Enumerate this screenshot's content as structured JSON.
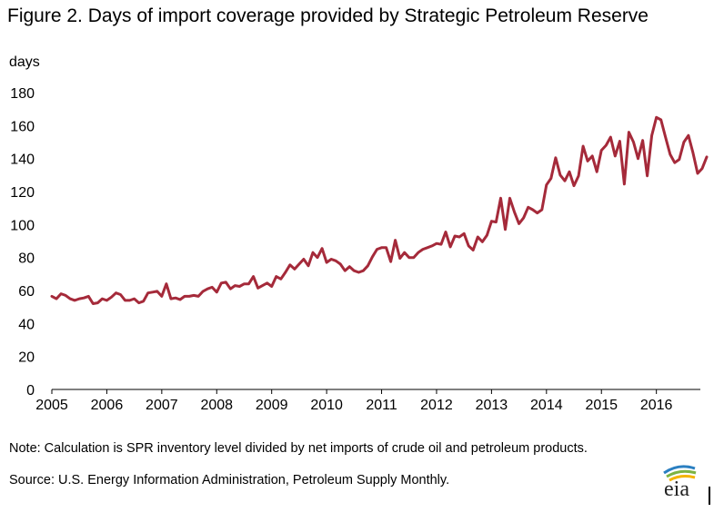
{
  "header": {
    "title": "Figure 2. Days of import coverage provided by Strategic Petroleum Reserve"
  },
  "footer": {
    "note": "Note: Calculation is SPR inventory level divided by net imports of crude oil and petroleum products.",
    "source": "Source: U.S. Energy Information Administration, Petroleum Supply Monthly.",
    "logo_text": "eia"
  },
  "colors": {
    "series": "#a52a3a",
    "logo_blue": "#2a7fc1",
    "logo_green": "#7cb342",
    "logo_yellow": "#f4b400"
  },
  "chart_data": {
    "type": "line",
    "title": "Figure 2. Days of import coverage provided by Strategic Petroleum Reserve",
    "xlabel": "",
    "ylabel": "days",
    "ylim": [
      0,
      180
    ],
    "xlim": [
      2005,
      2016.8
    ],
    "yticks": [
      0,
      20,
      40,
      60,
      80,
      100,
      120,
      140,
      160,
      180
    ],
    "xticks": [
      "2005",
      "2006",
      "2007",
      "2008",
      "2009",
      "2010",
      "2011",
      "2012",
      "2013",
      "2014",
      "2015",
      "2016"
    ],
    "grid": false,
    "legend": "none",
    "series": [
      {
        "x_start": 2005,
        "x_step_months": 1,
        "values": [
          56.5,
          55,
          58,
          57,
          55,
          54,
          55,
          55.5,
          56.5,
          52,
          52.5,
          55,
          54,
          56,
          58.5,
          57.5,
          54,
          54,
          55,
          52.5,
          53.5,
          58.5,
          59,
          59.5,
          56.5,
          64,
          55,
          55.5,
          54.5,
          56.5,
          56.5,
          57,
          56.5,
          59.5,
          61,
          62,
          59,
          64.5,
          65,
          61,
          63,
          62.5,
          64,
          64,
          68.5,
          61.5,
          63,
          64.5,
          62.5,
          68.5,
          67,
          71,
          75.5,
          73,
          76,
          79,
          75,
          83,
          80,
          85.5,
          77,
          79,
          78,
          76,
          72,
          74.5,
          72,
          71,
          72,
          75,
          80.5,
          85,
          86,
          86,
          77.5,
          90.5,
          79.5,
          83,
          80,
          80,
          83,
          85,
          86,
          87,
          88.5,
          88,
          95.5,
          86.5,
          93,
          92.5,
          94.5,
          87,
          84.5,
          92.5,
          89.5,
          93.5,
          102,
          101.5,
          116,
          97,
          116,
          107.5,
          100.5,
          104,
          110.5,
          109,
          107,
          109,
          124,
          128,
          140.5,
          130,
          126.5,
          132,
          123.5,
          129.5,
          147.5,
          138.5,
          141.5,
          132,
          145,
          148,
          153,
          141.5,
          150.5,
          124.5,
          156,
          150,
          140,
          151,
          129.5,
          154,
          165,
          163.5,
          153,
          142.5,
          137.5,
          139.5,
          150,
          154,
          143.5,
          131,
          134,
          141
        ]
      }
    ]
  }
}
